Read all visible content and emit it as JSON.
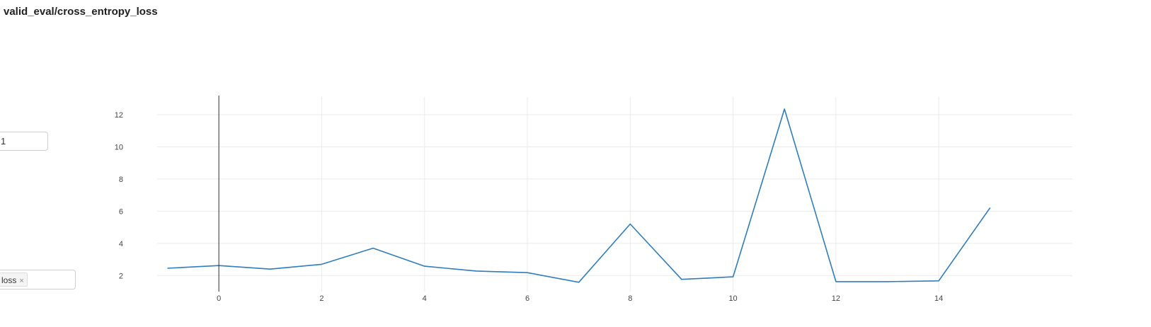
{
  "header": {
    "title": "valid_eval/cross_entropy_loss"
  },
  "controls": {
    "smoothing_value": "1",
    "tag_value": "loss",
    "tag_remove_glyph": "×"
  },
  "chart_data": {
    "type": "line",
    "title": "valid_eval/cross_entropy_loss",
    "xlabel": "",
    "ylabel": "",
    "xlim": [
      -1.2,
      16.6
    ],
    "ylim": [
      1.0,
      13.1
    ],
    "x_ticks": [
      0,
      2,
      4,
      6,
      8,
      10,
      12,
      14
    ],
    "y_ticks": [
      2,
      4,
      6,
      8,
      10,
      12
    ],
    "grid": true,
    "legend": "none",
    "series": [
      {
        "color": "#2e7dbd",
        "x": [
          -1,
          0,
          1,
          2,
          3,
          4,
          5,
          6,
          7,
          8,
          9,
          10,
          11,
          12,
          13,
          14,
          15
        ],
        "y": [
          2.45,
          2.62,
          2.4,
          2.7,
          3.7,
          2.58,
          2.28,
          2.18,
          1.58,
          5.2,
          1.76,
          1.92,
          12.35,
          1.62,
          1.62,
          1.67,
          6.22
        ]
      }
    ],
    "cursor_x": 0,
    "cursor_color": "#333333"
  }
}
